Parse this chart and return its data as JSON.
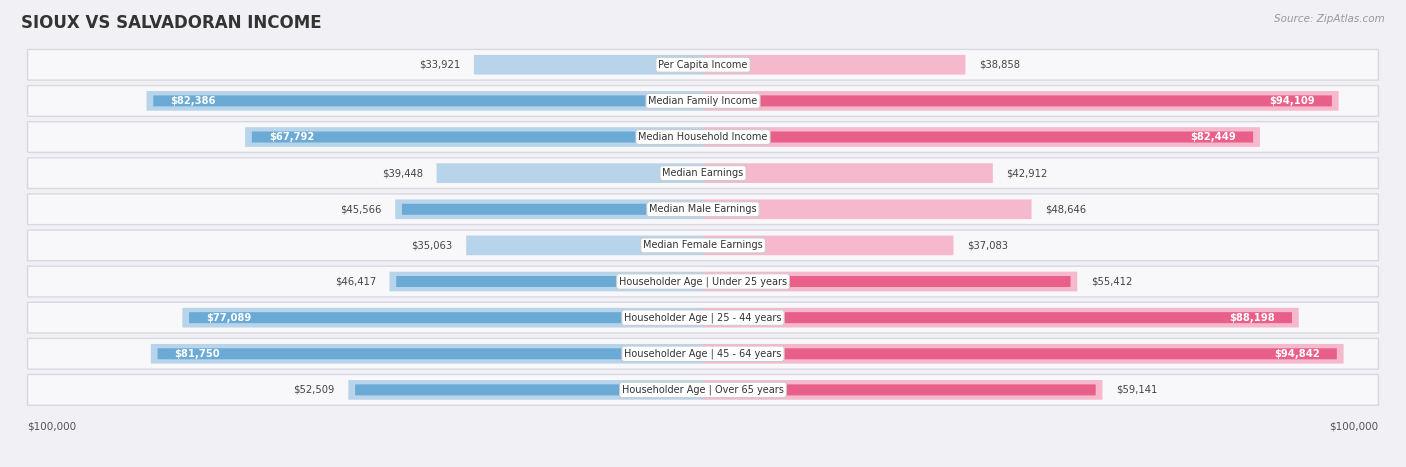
{
  "title": "SIOUX VS SALVADORAN INCOME",
  "source": "Source: ZipAtlas.com",
  "categories": [
    "Per Capita Income",
    "Median Family Income",
    "Median Household Income",
    "Median Earnings",
    "Median Male Earnings",
    "Median Female Earnings",
    "Householder Age | Under 25 years",
    "Householder Age | 25 - 44 years",
    "Householder Age | 45 - 64 years",
    "Householder Age | Over 65 years"
  ],
  "sioux_values": [
    33921,
    82386,
    67792,
    39448,
    45566,
    35063,
    46417,
    77089,
    81750,
    52509
  ],
  "salvadoran_values": [
    38858,
    94109,
    82449,
    42912,
    48646,
    37083,
    55412,
    88198,
    94842,
    59141
  ],
  "sioux_labels": [
    "$33,921",
    "$82,386",
    "$67,792",
    "$39,448",
    "$45,566",
    "$35,063",
    "$46,417",
    "$77,089",
    "$81,750",
    "$52,509"
  ],
  "salvadoran_labels": [
    "$38,858",
    "$94,109",
    "$82,449",
    "$42,912",
    "$48,646",
    "$37,083",
    "$55,412",
    "$88,198",
    "$94,842",
    "$59,141"
  ],
  "max_value": 100000,
  "sioux_color_light": "#b8d4ea",
  "sioux_color_dark": "#6aaad4",
  "salvadoran_color_light": "#f5b8cc",
  "salvadoran_color_dark": "#e8608a",
  "background_color": "#f0f0f5",
  "row_bg": "#f8f8fa",
  "row_border": "#d8d8e0",
  "label_box_color": "#ffffff",
  "label_box_border": "#cccccc",
  "sioux_inside_threshold": 55000,
  "salvadoran_inside_threshold": 60000
}
